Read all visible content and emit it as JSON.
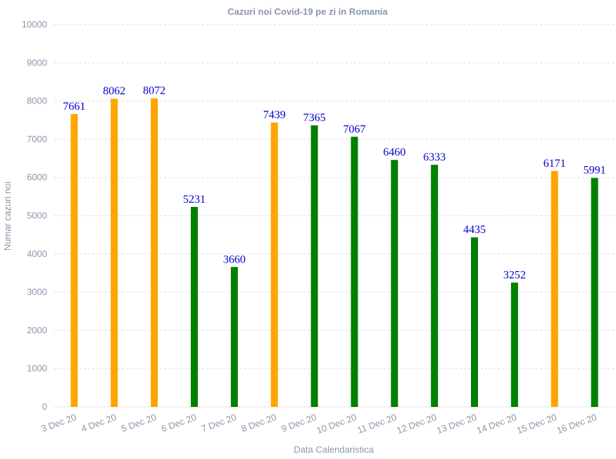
{
  "chart_data": {
    "type": "bar",
    "title": "Cazuri noi Covid-19 pe zi in Romania",
    "xlabel": "Data Calendaristica",
    "ylabel": "Numar cazuri noi",
    "ylim": [
      0,
      10000
    ],
    "yticks": [
      "0",
      "1000",
      "2000",
      "3000",
      "4000",
      "5000",
      "6000",
      "7000",
      "8000",
      "9000",
      "10000"
    ],
    "grid": true,
    "categories": [
      "3 Dec 20",
      "4 Dec 20",
      "5 Dec 20",
      "6 Dec 20",
      "7 Dec 20",
      "8 Dec 20",
      "9 Dec 20",
      "10 Dec 20",
      "11 Dec 20",
      "12 Dec 20",
      "13 Dec 20",
      "14 Dec 20",
      "15 Dec 20",
      "16 Dec 20"
    ],
    "values": [
      7661,
      8062,
      8072,
      5231,
      3660,
      7439,
      7365,
      7067,
      6460,
      6333,
      4435,
      3252,
      6171,
      5991
    ],
    "bar_colors": [
      "#ffa500",
      "#ffa500",
      "#ffa500",
      "#008000",
      "#008000",
      "#ffa500",
      "#008000",
      "#008000",
      "#008000",
      "#008000",
      "#008000",
      "#008000",
      "#ffa500",
      "#008000"
    ],
    "label_color": "#0000cc"
  }
}
